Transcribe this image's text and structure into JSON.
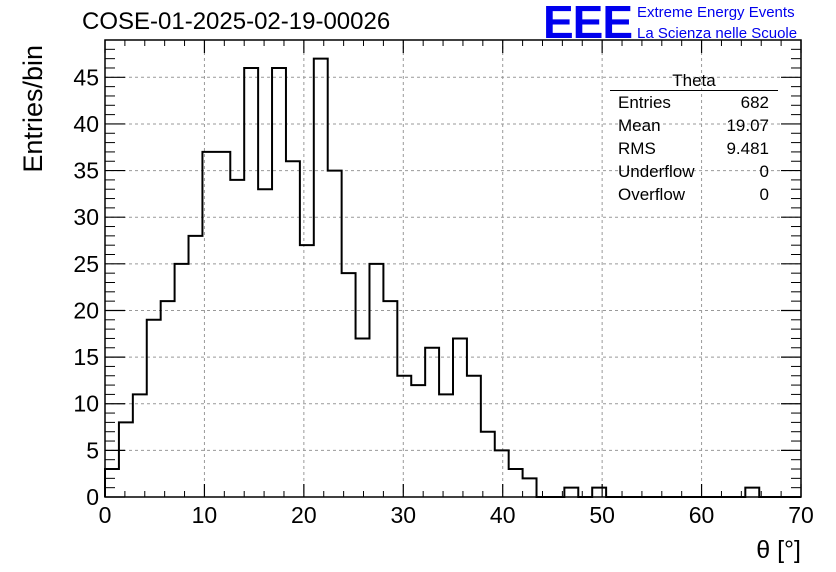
{
  "chart_data": {
    "type": "bar",
    "title": "COSE-01-2025-02-19-00026",
    "xlabel": "θ [°]",
    "ylabel": "Entries/bin",
    "xlim": [
      0,
      70
    ],
    "ylim": [
      0,
      49
    ],
    "bin_width": 1.4,
    "x_ticks": [
      "0",
      "10",
      "20",
      "30",
      "40",
      "50",
      "60",
      "70"
    ],
    "y_ticks": [
      "0",
      "5",
      "10",
      "15",
      "20",
      "25",
      "30",
      "35",
      "40",
      "45"
    ],
    "grid": true,
    "histtype": "step",
    "values": [
      3,
      8,
      11,
      19,
      21,
      25,
      28,
      37,
      37,
      34,
      46,
      33,
      46,
      36,
      27,
      47,
      35,
      24,
      17,
      25,
      21,
      13,
      12,
      16,
      11,
      17,
      13,
      7,
      5,
      3,
      2,
      0,
      0,
      1,
      0,
      1,
      0,
      0,
      0,
      0,
      0,
      0,
      0,
      0,
      0,
      0,
      1,
      0,
      0,
      0
    ]
  },
  "stats_box": {
    "title": "Theta",
    "rows": [
      {
        "label": "Entries",
        "value": "682"
      },
      {
        "label": "Mean",
        "value": "19.07"
      },
      {
        "label": "RMS",
        "value": "9.481"
      },
      {
        "label": "Underflow",
        "value": "0"
      },
      {
        "label": "Overflow",
        "value": "0"
      }
    ]
  },
  "branding": {
    "logo": "EEE",
    "line1": "Extreme Energy Events",
    "line2": "La Scienza nelle Scuole",
    "color": "#0000ee"
  }
}
